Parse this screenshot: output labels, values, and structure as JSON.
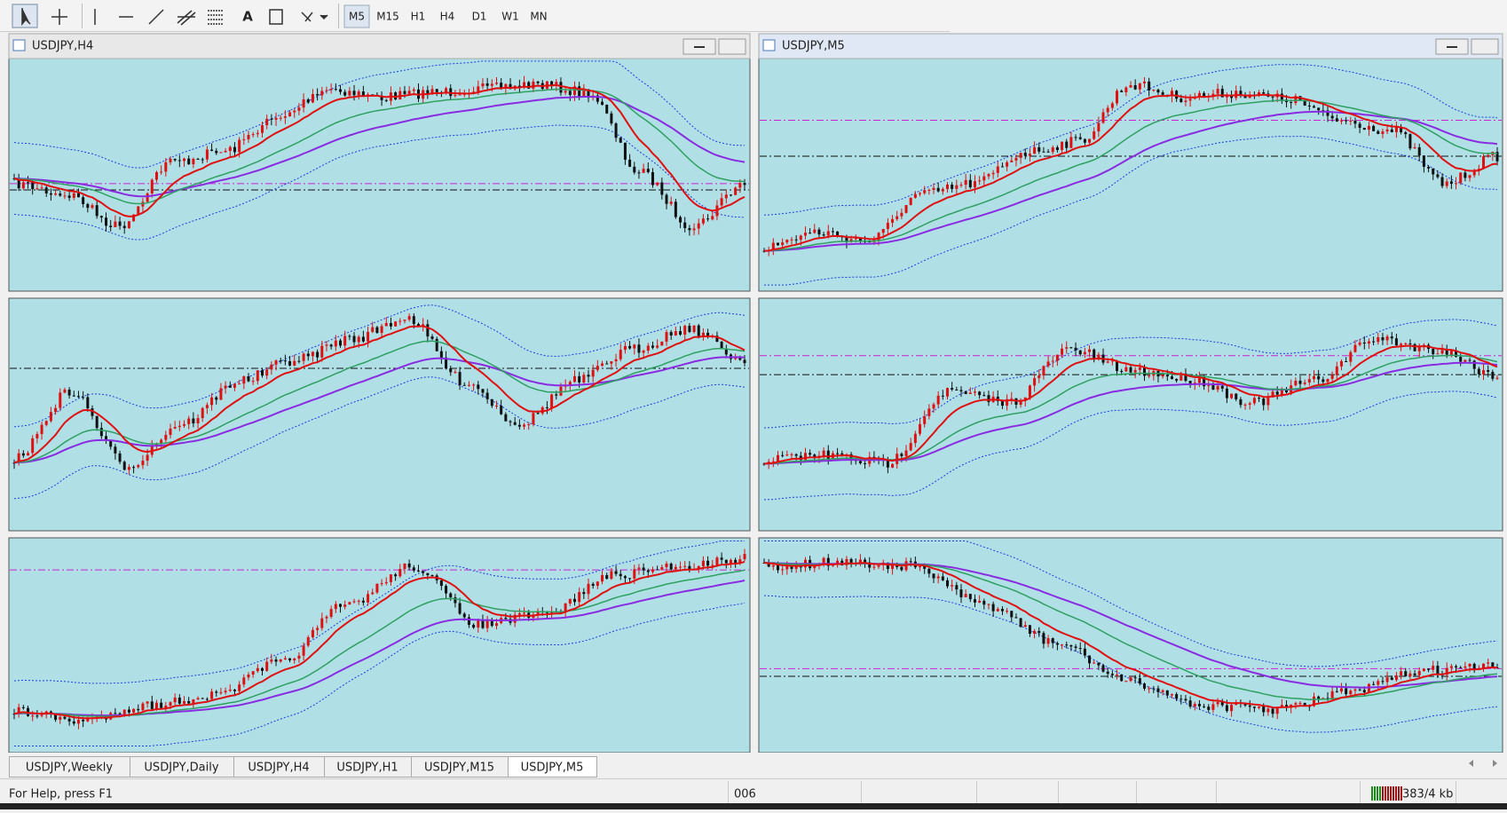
{
  "toolbar": {
    "timeframes": [
      "M5",
      "M15",
      "H1",
      "H4",
      "D1",
      "W1",
      "MN"
    ],
    "text_tool": "A"
  },
  "windows": [
    {
      "title": "USDJPY,H4"
    },
    {
      "title": "USDJPY,M5"
    }
  ],
  "tabs": [
    "USDJPY,Weekly",
    "USDJPY,Daily",
    "USDJPY,H4",
    "USDJPY,H1",
    "USDJPY,M15",
    "USDJPY,M5"
  ],
  "status": {
    "help": "For Help, press F1",
    "profile": "006",
    "traffic": "383/4 kb"
  }
}
